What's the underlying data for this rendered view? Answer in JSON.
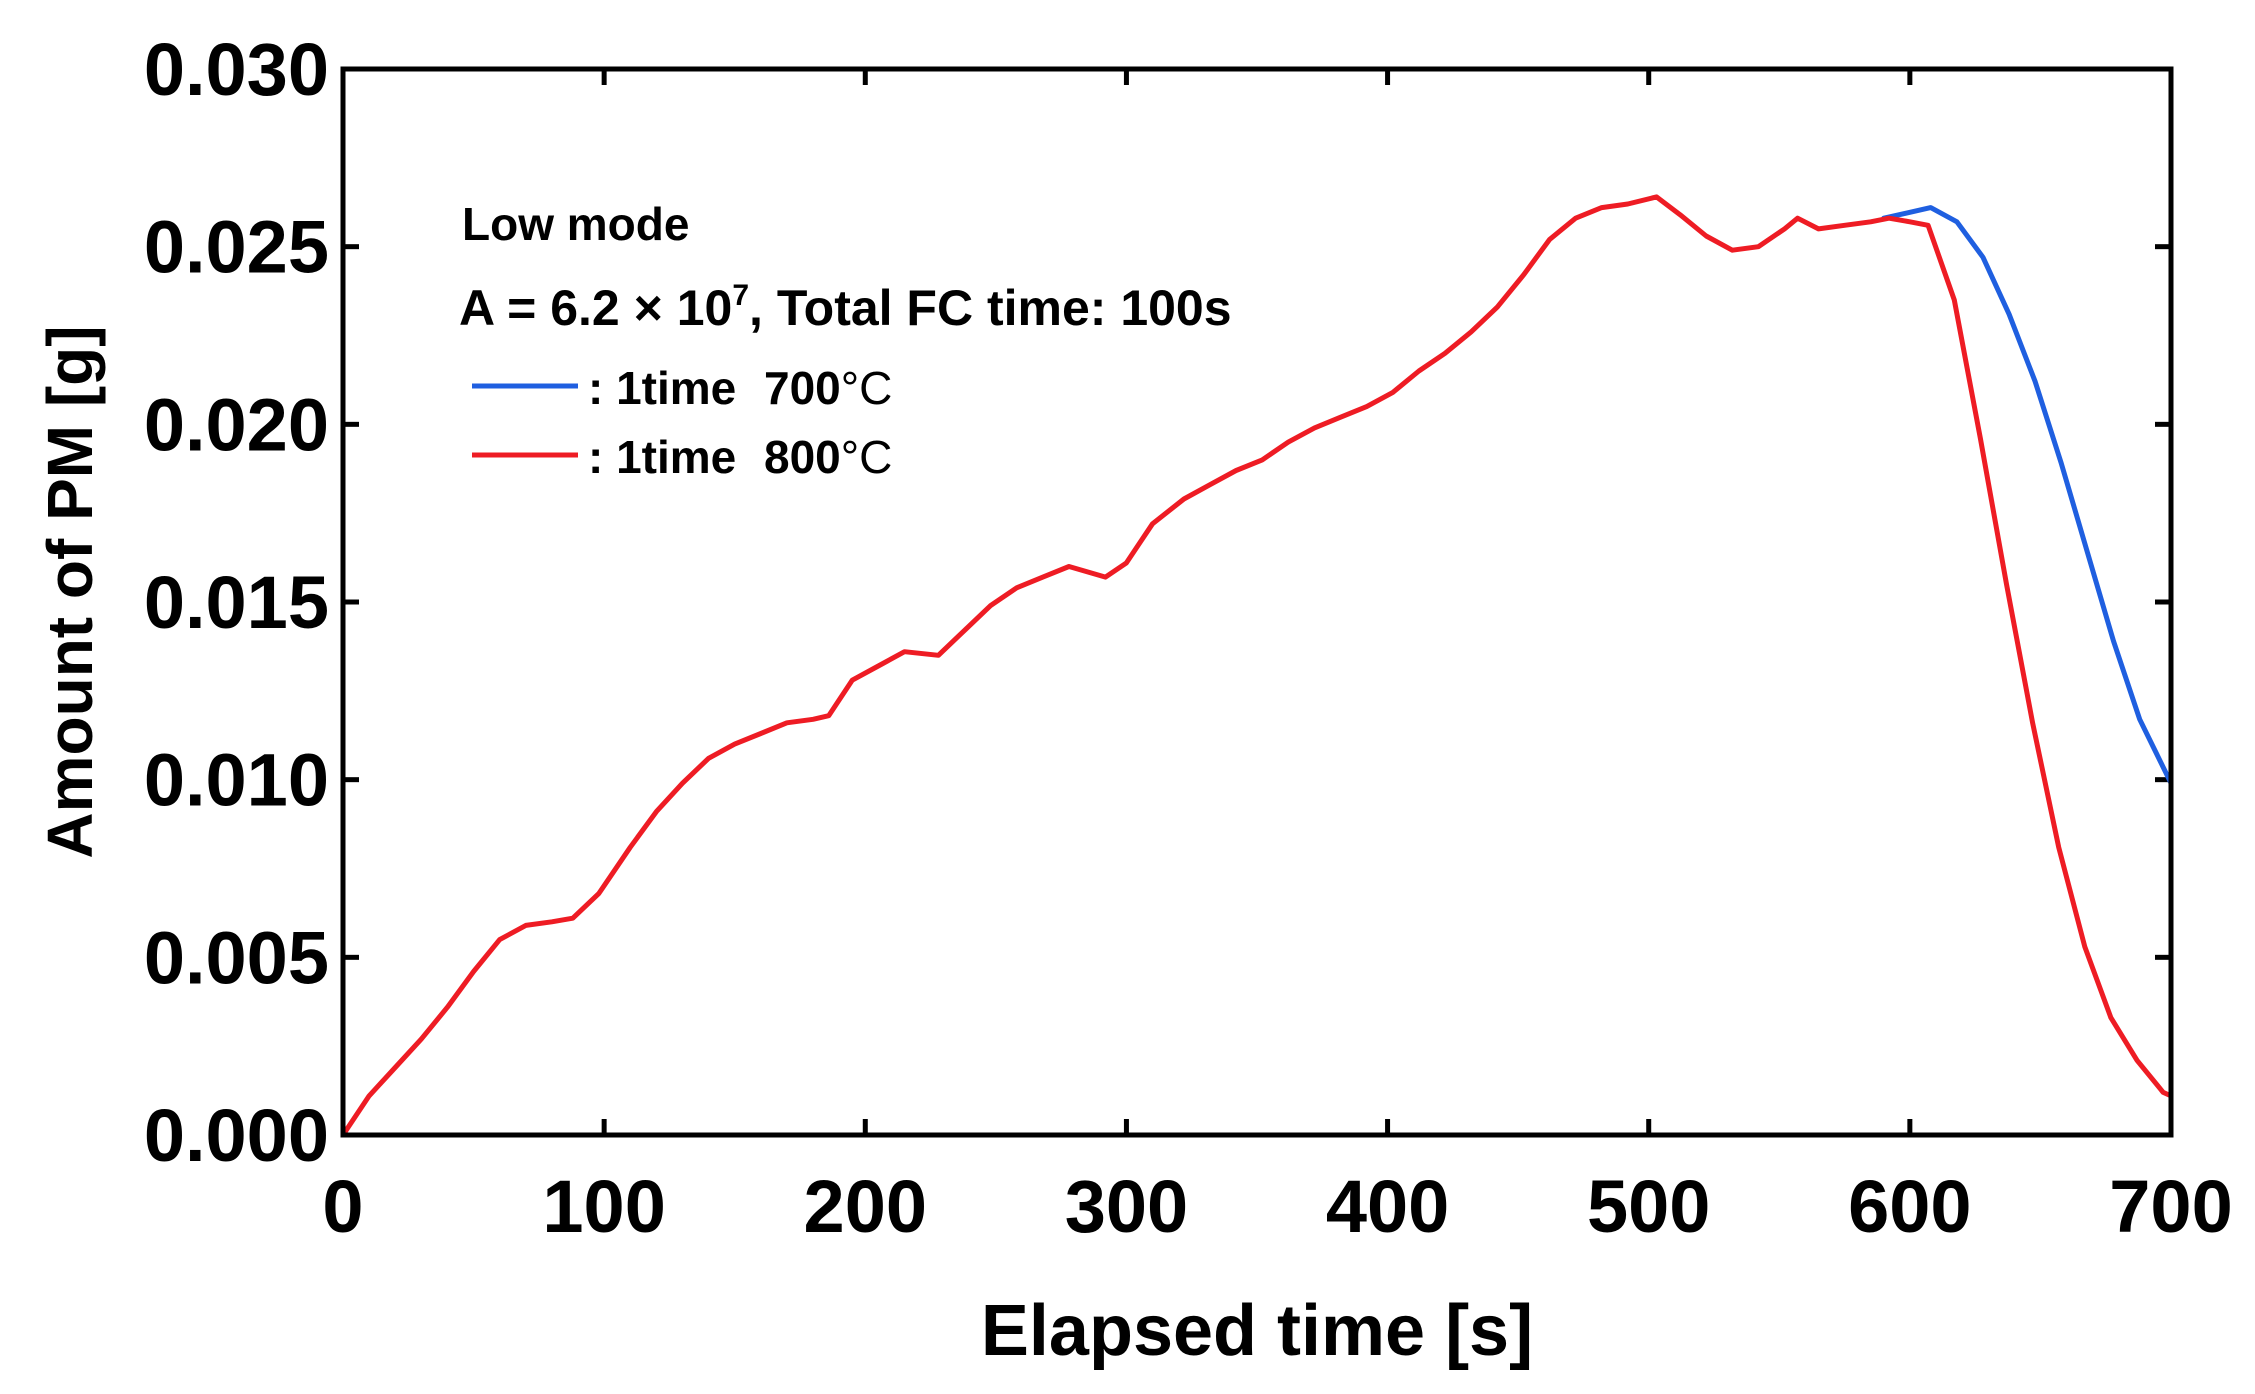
{
  "chart_data": {
    "type": "line",
    "xlabel": "Elapsed time [s]",
    "ylabel": "Amount of PM [g]",
    "xlim": [
      0,
      700
    ],
    "ylim": [
      0,
      0.03
    ],
    "xticks": [
      0,
      100,
      200,
      300,
      400,
      500,
      600,
      700
    ],
    "xtick_labels": [
      "0",
      "100",
      "200",
      "300",
      "400",
      "500",
      "600",
      "700"
    ],
    "yticks": [
      0,
      0.005,
      0.01,
      0.015,
      0.02,
      0.025,
      0.03
    ],
    "ytick_labels": [
      "0.000",
      "0.005",
      "0.010",
      "0.015",
      "0.020",
      "0.025",
      "0.030"
    ],
    "grid": false,
    "legend_position": "top-left",
    "annotations": {
      "mode": "Low mode",
      "params_prefix": "A = 6.2 × 10",
      "params_exponent": "7",
      "params_suffix": ", Total FC time: 100s"
    },
    "series": [
      {
        "legend_label": ": 1time",
        "legend_temp": "700",
        "legend_unit": "°C",
        "color": "#1f5fe0",
        "x": [
          590,
          608,
          618,
          628,
          638,
          648,
          658,
          668,
          678,
          688,
          700
        ],
        "y": [
          0.0258,
          0.0261,
          0.0257,
          0.0247,
          0.0231,
          0.0212,
          0.0189,
          0.0164,
          0.0139,
          0.0117,
          0.0099
        ]
      },
      {
        "legend_label": ": 1time",
        "legend_temp": "800",
        "legend_unit": "°C",
        "color": "#ee1c24",
        "x": [
          0,
          10,
          20,
          30,
          40,
          50,
          60,
          70,
          80,
          88,
          98,
          110,
          120,
          130,
          140,
          150,
          160,
          170,
          180,
          186,
          195,
          205,
          215,
          228,
          238,
          248,
          258,
          268,
          278,
          292,
          300,
          310,
          322,
          332,
          342,
          352,
          362,
          372,
          382,
          392,
          402,
          412,
          422,
          432,
          442,
          452,
          462,
          472,
          482,
          492,
          503,
          512,
          522,
          532,
          542,
          552,
          557,
          565,
          575,
          585,
          592,
          600,
          607,
          617,
          627,
          637,
          647,
          657,
          667,
          677,
          687,
          697,
          700
        ],
        "y": [
          0.0,
          0.0011,
          0.0019,
          0.0027,
          0.0036,
          0.0046,
          0.0055,
          0.0059,
          0.006,
          0.0061,
          0.0068,
          0.0081,
          0.0091,
          0.0099,
          0.0106,
          0.011,
          0.0113,
          0.0116,
          0.0117,
          0.0118,
          0.0128,
          0.0132,
          0.0136,
          0.0135,
          0.0142,
          0.0149,
          0.0154,
          0.0157,
          0.016,
          0.0157,
          0.0161,
          0.0172,
          0.0179,
          0.0183,
          0.0187,
          0.019,
          0.0195,
          0.0199,
          0.0202,
          0.0205,
          0.0209,
          0.0215,
          0.022,
          0.0226,
          0.0233,
          0.0242,
          0.0252,
          0.0258,
          0.0261,
          0.0262,
          0.0264,
          0.0259,
          0.0253,
          0.0249,
          0.025,
          0.0255,
          0.0258,
          0.0255,
          0.0256,
          0.0257,
          0.0258,
          0.0257,
          0.0256,
          0.0235,
          0.0196,
          0.0155,
          0.0116,
          0.0081,
          0.0053,
          0.0033,
          0.0021,
          0.0012,
          0.0011
        ]
      }
    ]
  }
}
